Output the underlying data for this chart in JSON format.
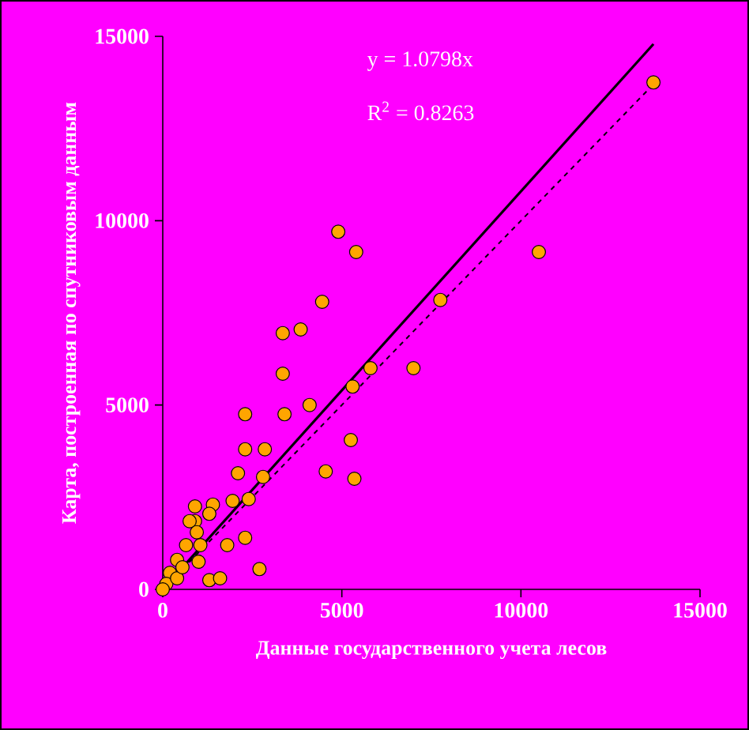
{
  "chart_data": {
    "type": "scatter",
    "xlabel": "Данные государственного учета лесов",
    "ylabel": "Карта, построенная по спутниковым данным",
    "annotations": [
      "y = 1.0798x",
      "R$^{2}$ = 0.8263"
    ],
    "xlim": [
      0,
      15000
    ],
    "ylim": [
      0,
      15000
    ],
    "xticks": [
      0,
      5000,
      10000,
      15000
    ],
    "yticks": [
      0,
      5000,
      10000,
      15000
    ],
    "grid": false,
    "marker": "circle",
    "series": [
      {
        "color": "#ffa500",
        "x": [
          4900,
          5400,
          13700,
          10500,
          7750,
          4450,
          3350,
          3850,
          7000,
          5800,
          3350,
          5300,
          4100,
          3400,
          2300,
          5250,
          2300,
          2850,
          4550,
          2100,
          5350,
          2800,
          1950,
          900,
          1400,
          1300,
          2400,
          900,
          750,
          2300,
          1800,
          1050,
          2700,
          1300,
          1600,
          1000,
          650,
          400,
          200,
          100,
          400,
          0,
          550,
          950
        ],
        "values": [
          9700,
          9150,
          13750,
          9150,
          7850,
          7800,
          6950,
          7050,
          6000,
          6000,
          5850,
          5500,
          5000,
          4750,
          4750,
          4050,
          3800,
          3800,
          3200,
          3150,
          3000,
          3050,
          2400,
          2250,
          2300,
          2050,
          2450,
          1850,
          1850,
          1400,
          1200,
          1200,
          550,
          250,
          300,
          750,
          1200,
          800,
          450,
          150,
          300,
          0,
          600,
          1550
        ]
      },
      {
        "type": "line",
        "color": "#000000",
        "line_style": "solid",
        "marker": "none",
        "x": [
          0,
          13700
        ],
        "values": [
          0,
          14790
        ]
      },
      {
        "type": "line",
        "color": "#000000",
        "line_style": "dashed",
        "marker": "none",
        "x": [
          0,
          13700
        ],
        "values": [
          0,
          13700
        ]
      }
    ]
  }
}
